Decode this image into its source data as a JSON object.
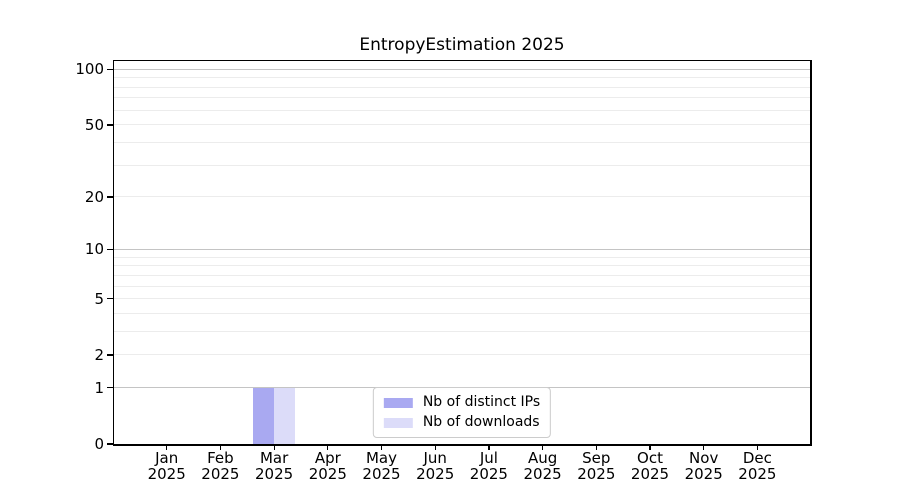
{
  "chart_data": {
    "type": "bar",
    "title": "EntropyEstimation 2025",
    "categories": [
      "Jan",
      "Feb",
      "Mar",
      "Apr",
      "May",
      "Jun",
      "Jul",
      "Aug",
      "Sep",
      "Oct",
      "Nov",
      "Dec"
    ],
    "category_year": "2025",
    "series": [
      {
        "name": "Nb of distinct IPs",
        "color": "#a9a9f1",
        "values": [
          0,
          0,
          1,
          0,
          0,
          0,
          0,
          0,
          0,
          0,
          0,
          0
        ]
      },
      {
        "name": "Nb of downloads",
        "color": "#dcdcf9",
        "values": [
          0,
          0,
          1,
          0,
          0,
          0,
          0,
          0,
          0,
          0,
          0,
          0
        ]
      }
    ],
    "yaxis": {
      "scale": "log1p",
      "tick_values": [
        0,
        1,
        2,
        5,
        10,
        20,
        50,
        100
      ],
      "minor_gridlines": [
        3,
        4,
        6,
        7,
        8,
        9,
        30,
        40,
        60,
        70,
        80,
        90
      ],
      "decade_gridlines": [
        1,
        10,
        100
      ],
      "ylim": [
        0,
        111
      ]
    },
    "xlabel": "",
    "ylabel": "",
    "grid": true,
    "legend_position": "lower center"
  },
  "style": {
    "background": "#ffffff",
    "spine_color": "#000000",
    "text_color": "#000000",
    "grid_major": "#c4c4c4",
    "grid_minor": "#ececec",
    "legend_border": "#cccccc"
  }
}
